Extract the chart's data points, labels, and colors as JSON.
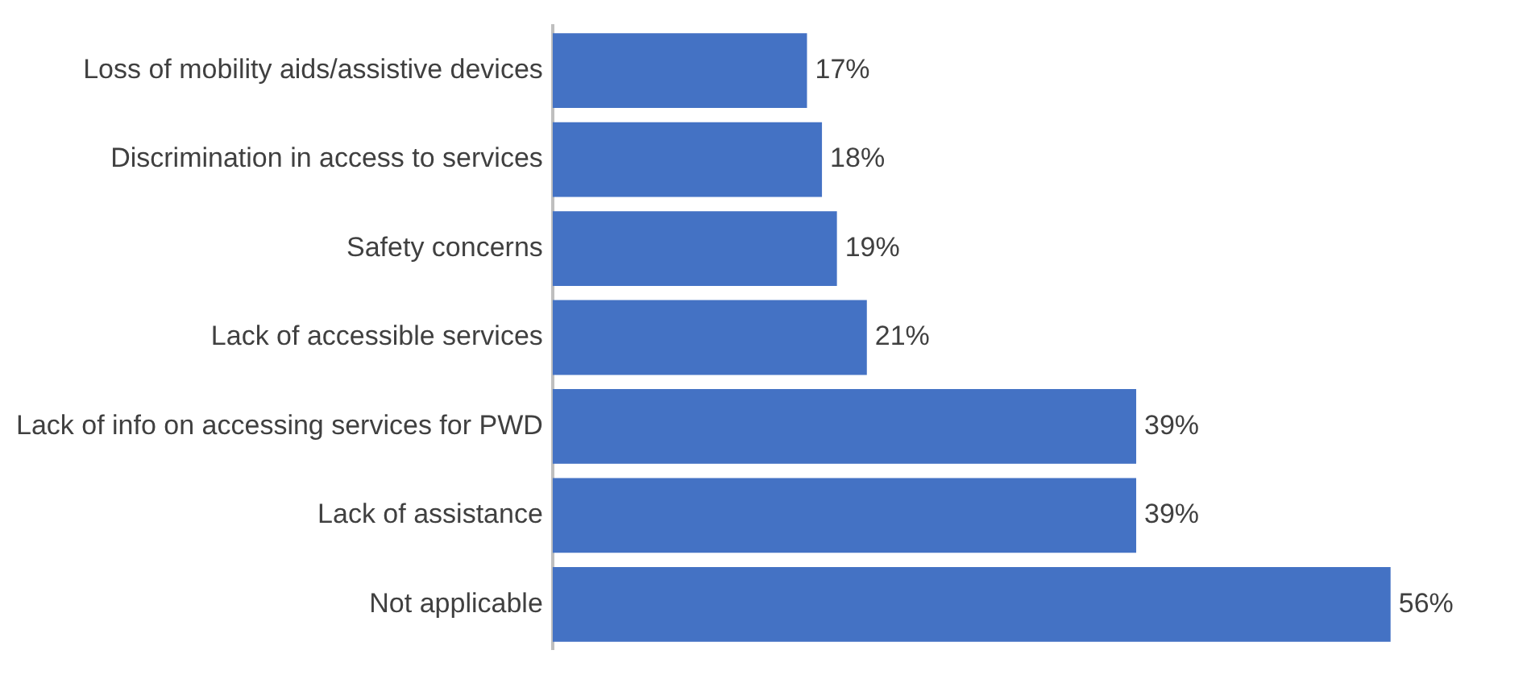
{
  "chart_data": {
    "type": "bar",
    "orientation": "horizontal",
    "categories": [
      "Loss of mobility aids/assistive devices",
      "Discrimination in access to services",
      "Safety concerns",
      "Lack of accessible services",
      "Lack of info on accessing services for PWD",
      "Lack of assistance",
      "Not applicable"
    ],
    "values": [
      17,
      18,
      19,
      21,
      39,
      39,
      56
    ],
    "value_labels": [
      "17%",
      "18%",
      "19%",
      "21%",
      "39%",
      "39%",
      "56%"
    ],
    "color": "#4472c4"
  }
}
